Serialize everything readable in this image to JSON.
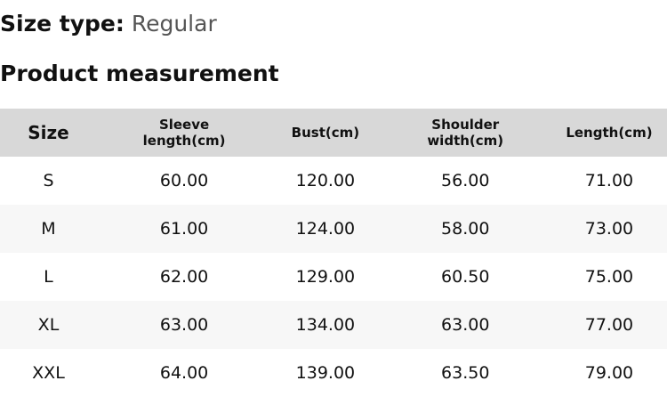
{
  "size_type": {
    "label": "Size type:",
    "value": "Regular"
  },
  "title": "Product measurement",
  "table": {
    "headers": [
      "Size",
      "Sleeve length(cm)",
      "Bust(cm)",
      "Shoulder width(cm)",
      "Length(cm)"
    ],
    "rows": [
      [
        "S",
        "60.00",
        "120.00",
        "56.00",
        "71.00"
      ],
      [
        "M",
        "61.00",
        "124.00",
        "58.00",
        "73.00"
      ],
      [
        "L",
        "62.00",
        "129.00",
        "60.50",
        "75.00"
      ],
      [
        "XL",
        "63.00",
        "134.00",
        "63.00",
        "77.00"
      ],
      [
        "XXL",
        "64.00",
        "139.00",
        "63.50",
        "79.00"
      ]
    ]
  }
}
